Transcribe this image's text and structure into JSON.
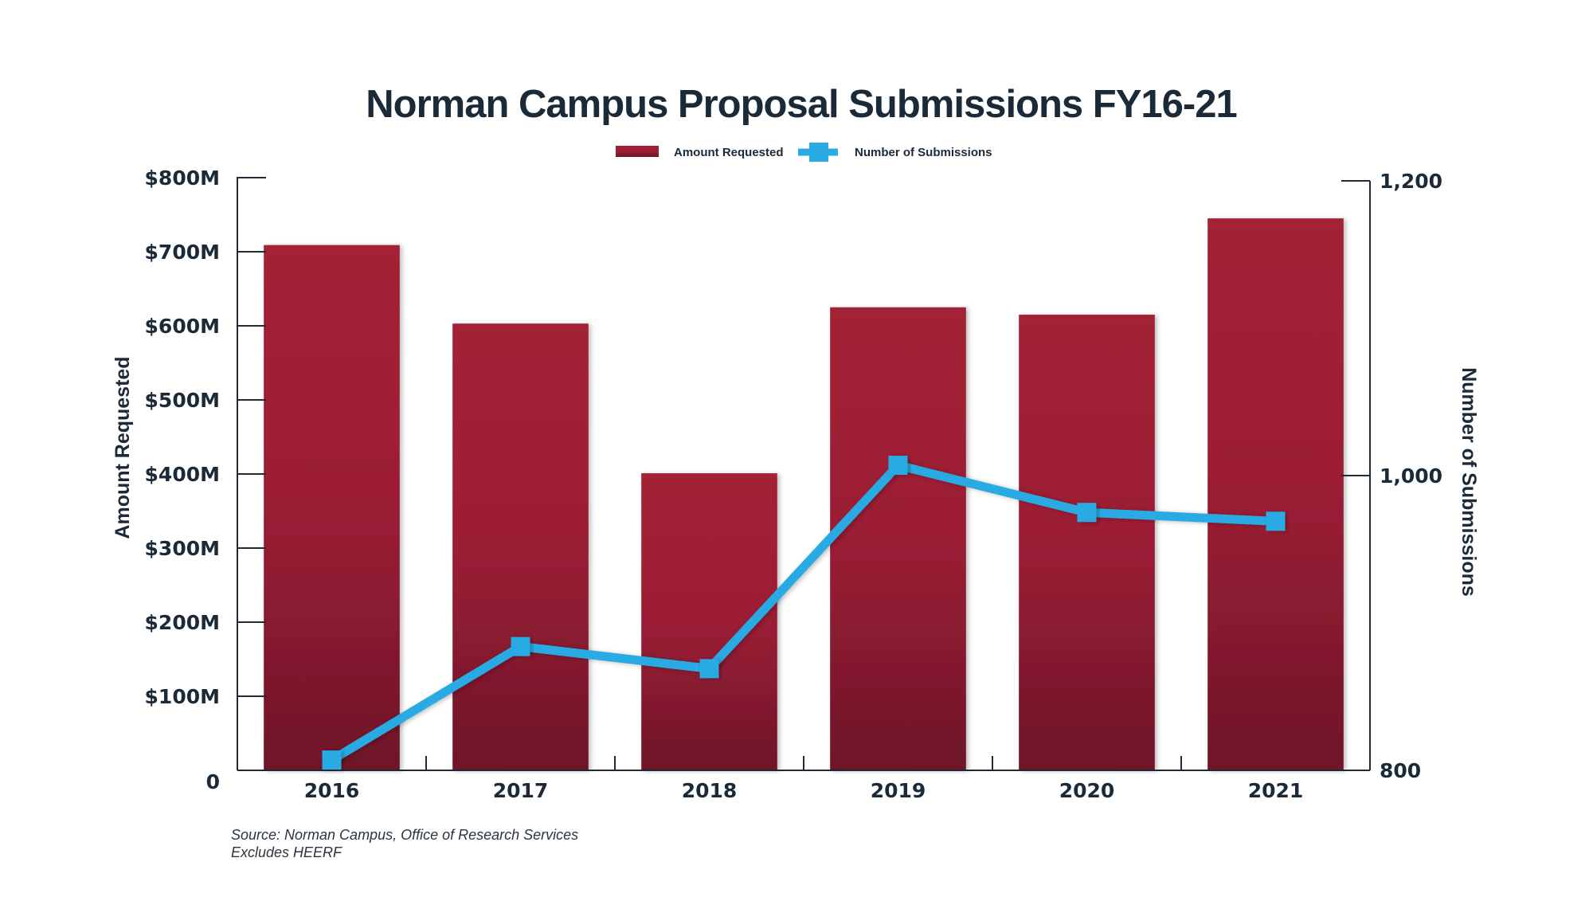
{
  "colors": {
    "bar_top": "#a32036",
    "bar_bottom": "#6e1428",
    "line": "#29aae2",
    "text": "#1b2a38",
    "axis": "#1e2a36"
  },
  "chart_data": {
    "type": "bar+line",
    "title": "Norman Campus Proposal Submissions FY16-21",
    "categories": [
      "2016",
      "2017",
      "2018",
      "2019",
      "2020",
      "2021"
    ],
    "series": [
      {
        "name": "Amount Requested",
        "type": "bar",
        "axis": "left",
        "unit": "$M",
        "values": [
          709,
          603,
          401,
          625,
          615,
          745
        ]
      },
      {
        "name": "Number of Submissions",
        "type": "line",
        "axis": "right",
        "values": [
          807,
          884,
          869,
          1007,
          975,
          969
        ]
      }
    ],
    "y_left": {
      "label": "Amount Requested",
      "range": [
        0,
        800
      ],
      "ticks": [
        0,
        100,
        200,
        300,
        400,
        500,
        600,
        700,
        800
      ],
      "tick_labels": [
        "0",
        "$100M",
        "$200M",
        "$300M",
        "$400M",
        "$500M",
        "$600M",
        "$700M",
        "$800M"
      ]
    },
    "y_right": {
      "label": "Number of Submissions",
      "range": [
        800,
        1200
      ],
      "ticks": [
        800,
        1000,
        1200
      ],
      "tick_labels": [
        "800",
        "1,000",
        "1,200"
      ]
    },
    "legend": {
      "position": "top-center",
      "entries": [
        "Amount Requested",
        "Number of Submissions"
      ]
    },
    "grid": false,
    "source_lines": [
      "Source: Norman Campus, Office of Research Services",
      "Excludes HEERF"
    ]
  }
}
